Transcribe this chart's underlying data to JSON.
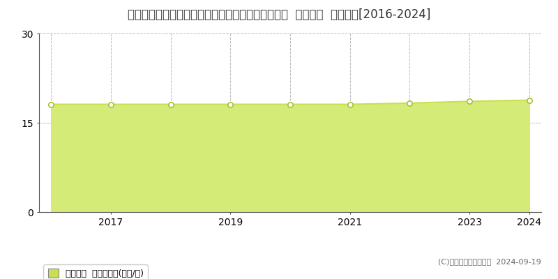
{
  "title": "千葉県四街道市下志津新田字成徳２５４５番２８４  公示地価  地価推移[2016-2024]",
  "years": [
    2016,
    2017,
    2018,
    2019,
    2020,
    2021,
    2022,
    2023,
    2024
  ],
  "values": [
    18.1,
    18.1,
    18.1,
    18.1,
    18.1,
    18.1,
    18.3,
    18.6,
    18.8
  ],
  "ylim": [
    0,
    30
  ],
  "yticks": [
    0,
    15,
    30
  ],
  "line_color": "#c8e050",
  "fill_color": "#d4eb78",
  "marker_color": "white",
  "marker_edge_color": "#aabf30",
  "background_color": "#ffffff",
  "grid_color": "#aaaaaa",
  "legend_label": "公示地価  平均坪単価(万円/坪)",
  "legend_square_color": "#c8e050",
  "copyright_text": "(C)土地価格ドットコム  2024-09-19",
  "title_fontsize": 12,
  "axis_fontsize": 10,
  "legend_fontsize": 9,
  "copyright_fontsize": 8
}
